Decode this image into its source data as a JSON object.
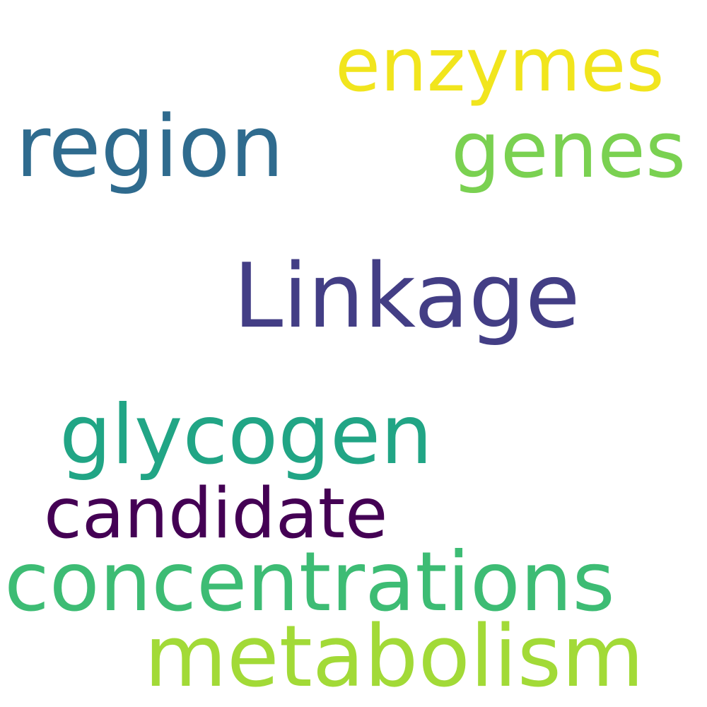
{
  "word_cloud": {
    "background": "#ffffff",
    "words": [
      {
        "text": "enzymes",
        "color": "#f1e51d"
      },
      {
        "text": "region",
        "color": "#2f6b8e"
      },
      {
        "text": "genes",
        "color": "#7ad151"
      },
      {
        "text": "Linkage",
        "color": "#433e85"
      },
      {
        "text": "glycogen",
        "color": "#21a585"
      },
      {
        "text": "candidate",
        "color": "#440154"
      },
      {
        "text": "concentrations",
        "color": "#3dbc74"
      },
      {
        "text": "metabolism",
        "color": "#a2da37"
      }
    ]
  }
}
